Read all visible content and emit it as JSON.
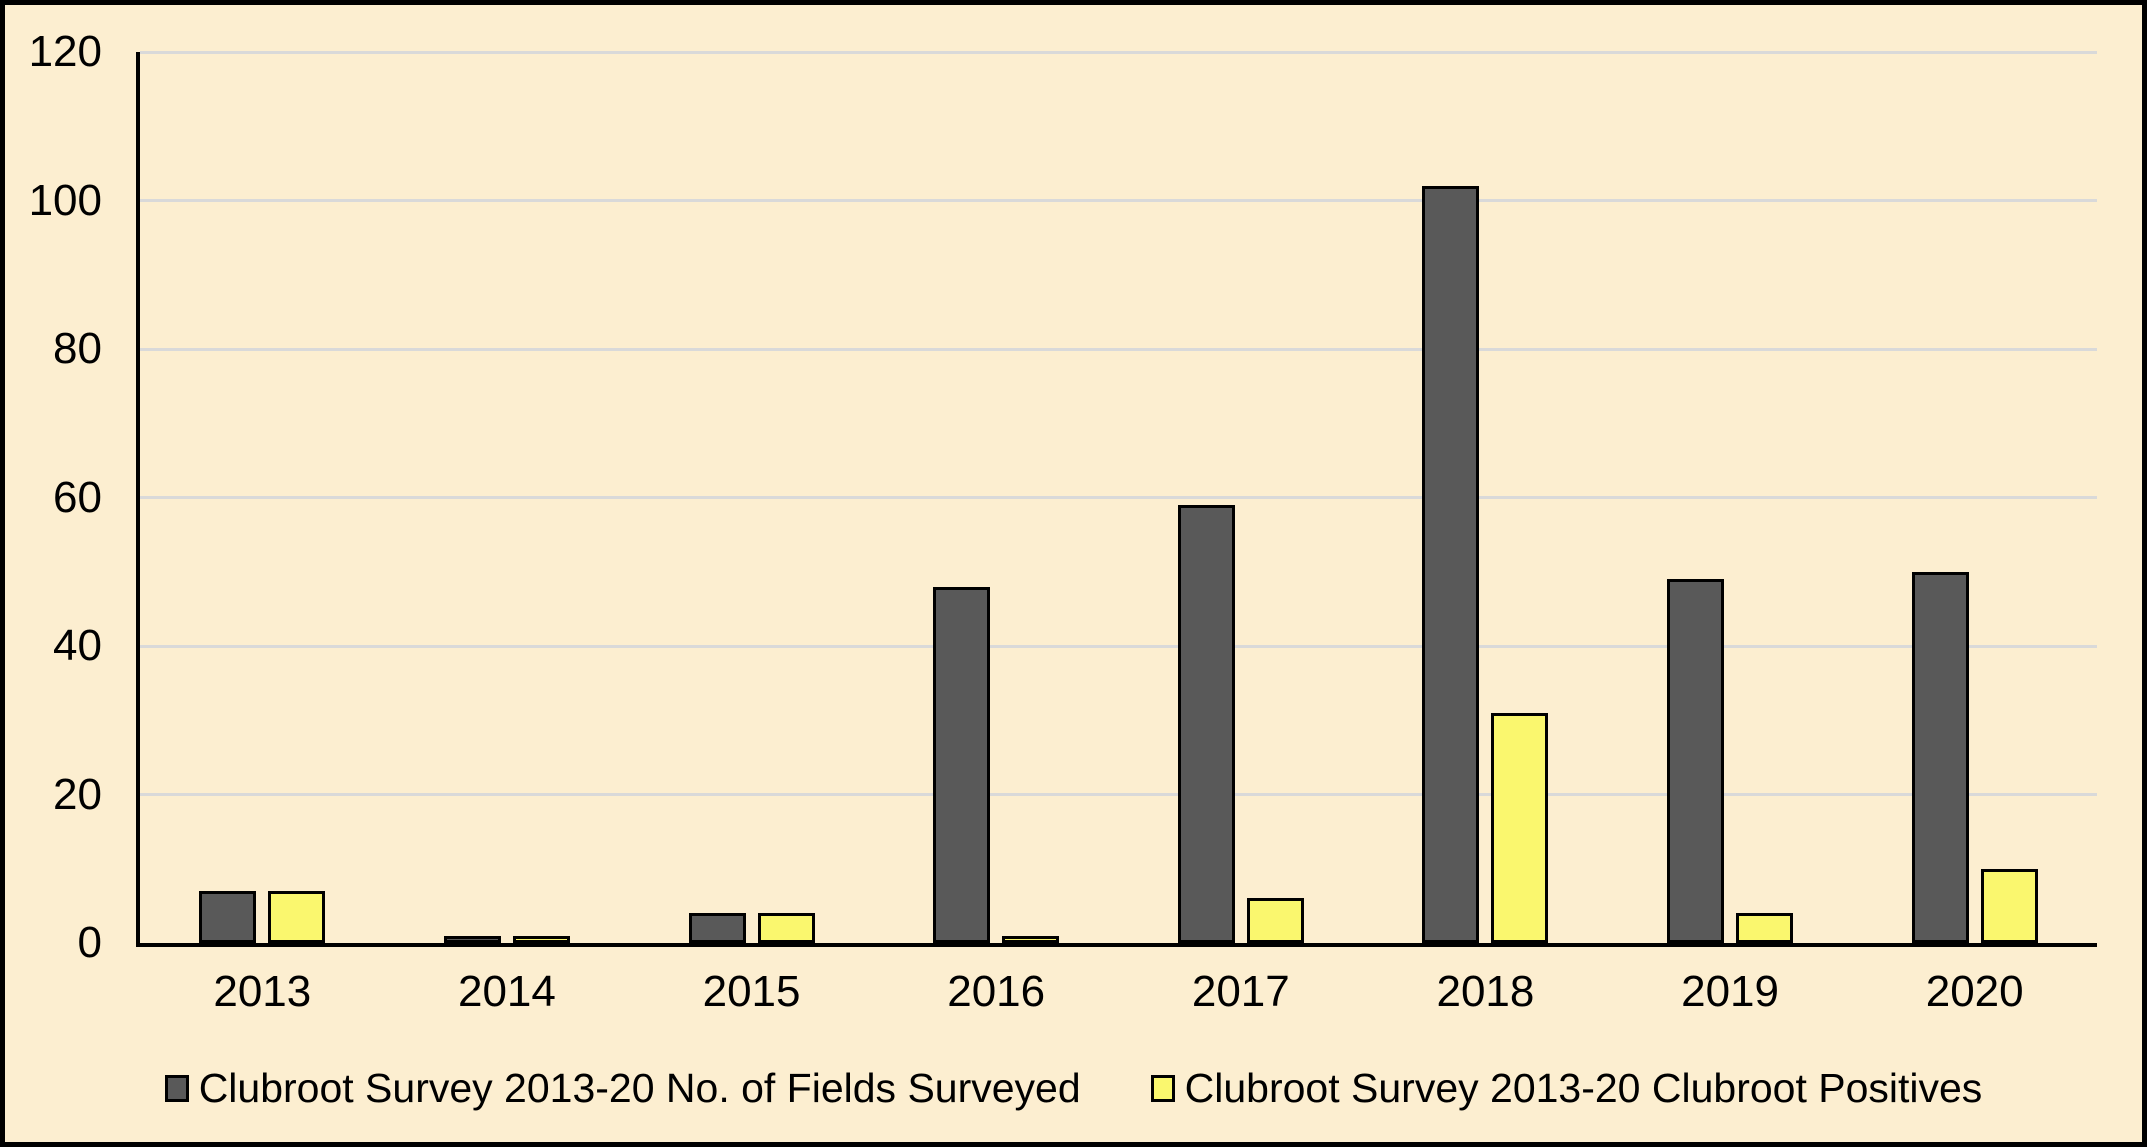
{
  "chart_data": {
    "type": "bar",
    "title": "",
    "xlabel": "",
    "ylabel": "",
    "categories": [
      "2013",
      "2014",
      "2015",
      "2016",
      "2017",
      "2018",
      "2019",
      "2020"
    ],
    "series": [
      {
        "name": "Clubroot Survey 2013-20 No. of Fields Surveyed",
        "color": "#595959",
        "values": [
          7,
          1,
          4,
          48,
          59,
          102,
          49,
          50
        ]
      },
      {
        "name": "Clubroot Survey 2013-20 Clubroot Positives",
        "color": "#FAF76E",
        "values": [
          7,
          1,
          4,
          1,
          6,
          31,
          4,
          10
        ]
      }
    ],
    "ylim": [
      0,
      120
    ],
    "yticks": [
      0,
      20,
      40,
      60,
      80,
      100,
      120
    ],
    "grid": true,
    "gridline_color": "#D9D9D9",
    "legend_position": "bottom"
  },
  "colors": {
    "background": "#FCEED0",
    "axis": "#000000",
    "border": "#000000",
    "text": "#000000",
    "gridline": "#D9D9D9"
  }
}
